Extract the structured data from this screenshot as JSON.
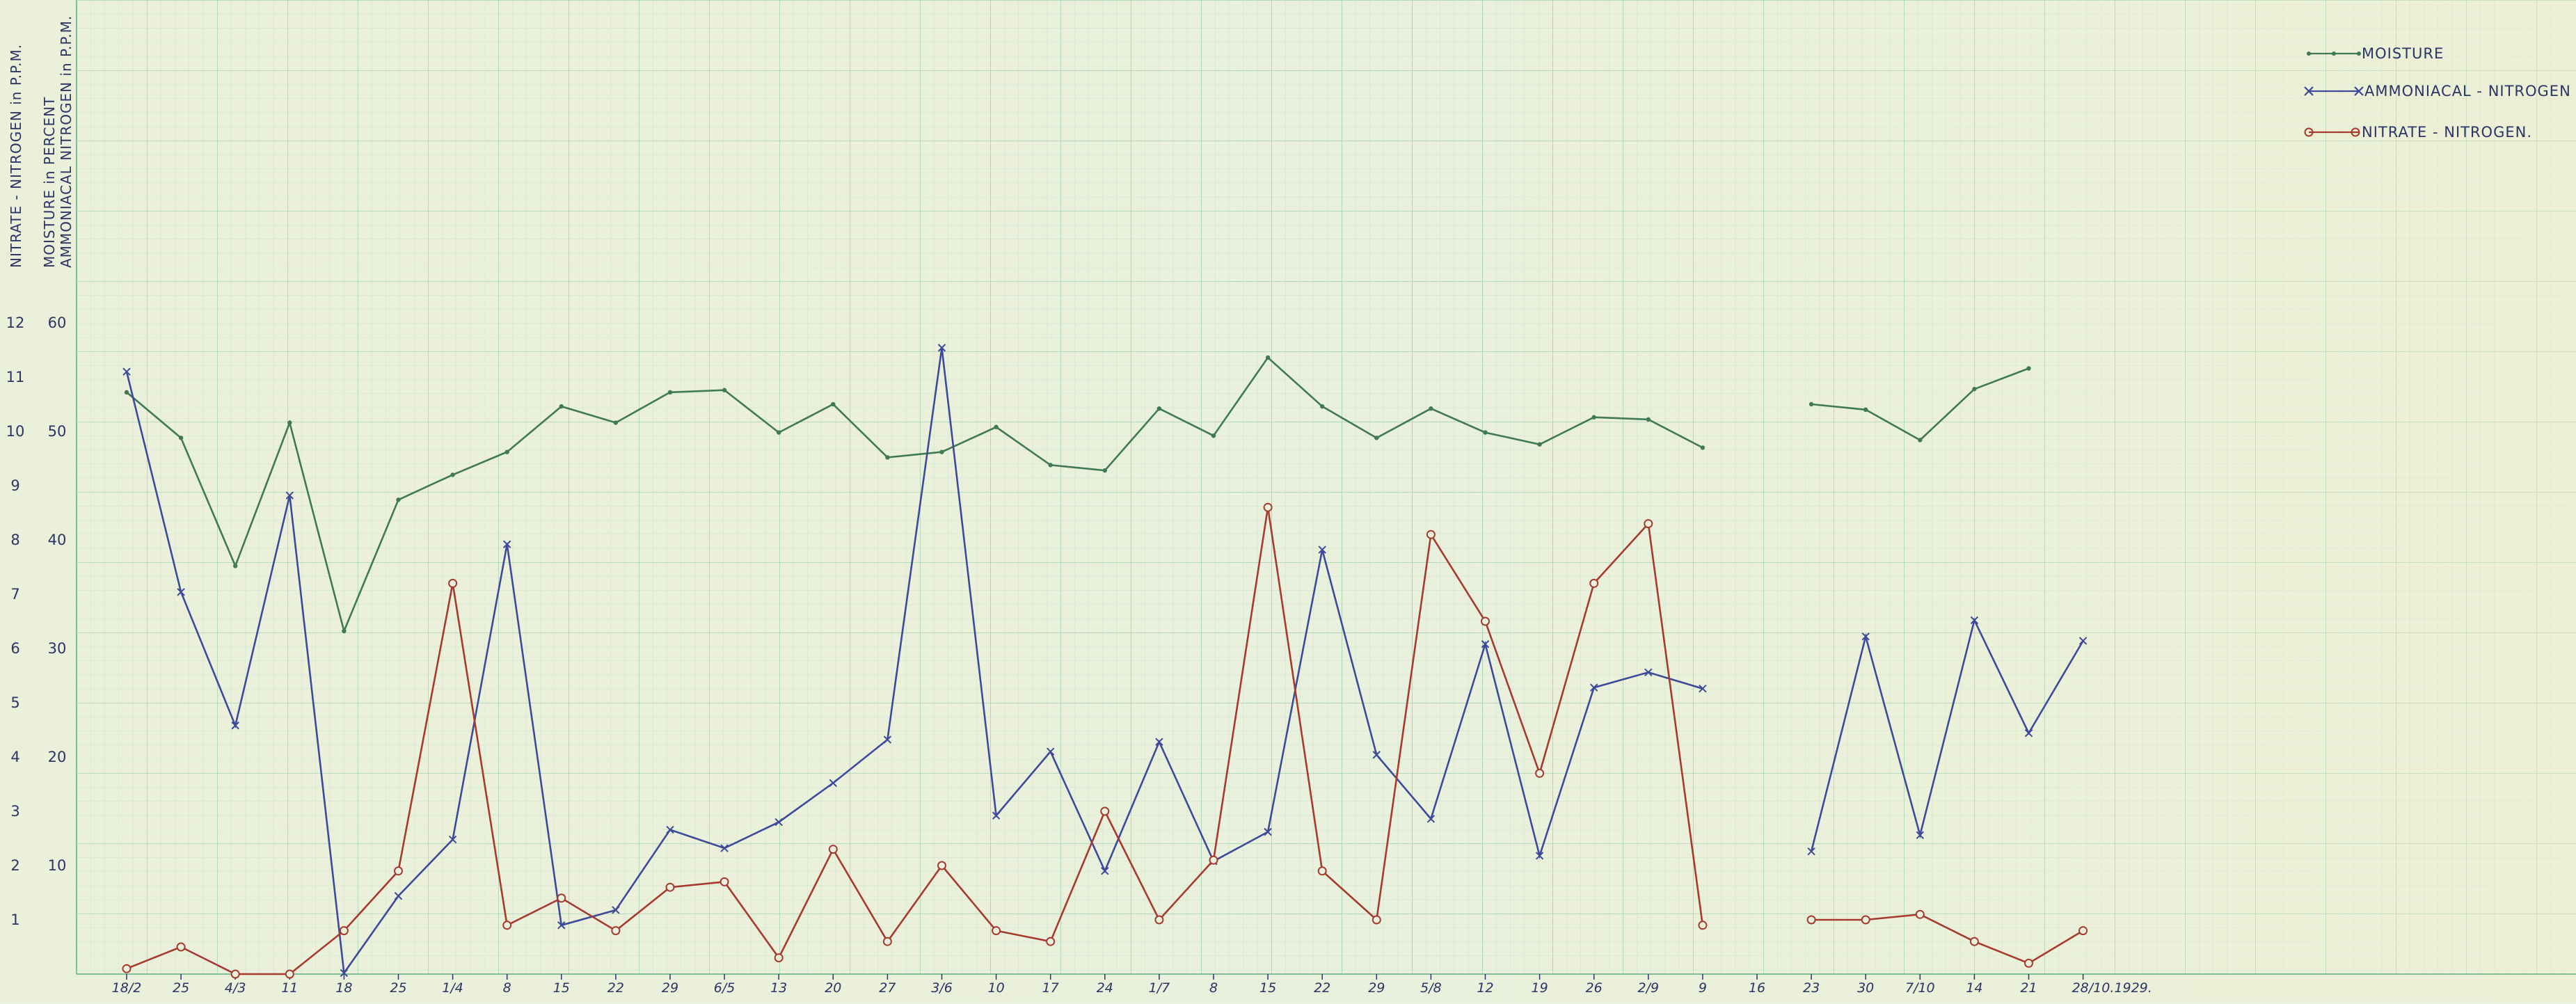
{
  "chart_data": {
    "type": "line",
    "title": "",
    "ylabel_left_outer": "NITRATE - NITROGEN in P.P.M.",
    "ylabel_left_inner_1": "MOISTURE in PERCENT",
    "ylabel_left_inner_2": "AMMONIACAL NITROGEN in P.P.M.",
    "nitrate_ticks": [
      1,
      2,
      3,
      4,
      5,
      6,
      7,
      8,
      9,
      10,
      11,
      12
    ],
    "moisture_ammonia_ticks": [
      10,
      20,
      30,
      40,
      50,
      60
    ],
    "x_ticks": [
      "18/2",
      "25",
      "4/3",
      "11",
      "18",
      "25",
      "1/4",
      "8",
      "15",
      "22",
      "29",
      "6/5",
      "13",
      "20",
      "27",
      "3/6",
      "10",
      "17",
      "24",
      "1/7",
      "8",
      "15",
      "22",
      "29",
      "5/8",
      "12",
      "19",
      "26",
      "2/9",
      "9",
      "16",
      "23",
      "30",
      "7/10",
      "14",
      "21",
      "28/10.1929."
    ],
    "legend_position": "top-right",
    "colors": {
      "moisture": "#3f7a55",
      "ammonia": "#3d4a9a",
      "nitrate": "#a63a2e",
      "grid_minor": "#bfe0cc",
      "grid_major": "#8fcaa8"
    },
    "series": [
      {
        "name": "MOISTURE",
        "marker": "dot",
        "points": [
          [
            0,
            53.6
          ],
          [
            1,
            49.4
          ],
          [
            2,
            37.6
          ],
          [
            3,
            50.8
          ],
          [
            4,
            31.6
          ],
          [
            5,
            43.7
          ],
          [
            6,
            46
          ],
          [
            7,
            48.1
          ],
          [
            8,
            52.3
          ],
          [
            9,
            50.8
          ],
          [
            10,
            53.6
          ],
          [
            11,
            53.8
          ],
          [
            12,
            49.9
          ],
          [
            13,
            52.5
          ],
          [
            14,
            47.6
          ],
          [
            15,
            48.1
          ],
          [
            16,
            50.4
          ],
          [
            17,
            46.9
          ],
          [
            18,
            46.4
          ],
          [
            19,
            52.1
          ],
          [
            20,
            49.6
          ],
          [
            21,
            56.8
          ],
          [
            22,
            52.3
          ],
          [
            23,
            49.4
          ],
          [
            24,
            52.1
          ],
          [
            25,
            49.9
          ],
          [
            26,
            48.8
          ],
          [
            27,
            51.3
          ],
          [
            28,
            51.1
          ],
          [
            29,
            48.5
          ],
          [
            31,
            52.5
          ],
          [
            32,
            52
          ],
          [
            33,
            49.2
          ],
          [
            34,
            53.9
          ],
          [
            35,
            55.8
          ]
        ]
      },
      {
        "name": "AMMONIACAL - NITROGEN",
        "marker": "x",
        "points": [
          [
            0,
            55.5
          ],
          [
            1,
            35.2
          ],
          [
            2,
            22.9
          ],
          [
            3,
            44.1
          ],
          [
            4,
            0.1
          ],
          [
            5,
            7.2
          ],
          [
            6,
            12.4
          ],
          [
            7,
            39.6
          ],
          [
            8,
            4.5
          ],
          [
            9,
            5.9
          ],
          [
            10,
            13.3
          ],
          [
            11,
            11.6
          ],
          [
            12,
            14
          ],
          [
            13,
            17.6
          ],
          [
            14,
            21.6
          ],
          [
            15,
            57.7
          ],
          [
            16,
            14.6
          ],
          [
            17,
            20.5
          ],
          [
            18,
            9.5
          ],
          [
            19,
            21.4
          ],
          [
            20,
            10.4
          ],
          [
            21,
            13.1
          ],
          [
            22,
            39.1
          ],
          [
            23,
            20.2
          ],
          [
            24,
            14.3
          ],
          [
            25,
            30.4
          ],
          [
            26,
            10.9
          ],
          [
            27,
            26.4
          ],
          [
            28,
            27.8
          ],
          [
            29,
            26.3
          ],
          [
            31,
            11.3
          ],
          [
            32,
            31.1
          ],
          [
            33,
            12.8
          ],
          [
            34,
            32.6
          ],
          [
            35,
            22.2
          ],
          [
            36,
            30.7
          ]
        ]
      },
      {
        "name": "NITRATE - NITROGEN.",
        "marker": "circle",
        "points": [
          [
            0,
            0.1
          ],
          [
            1,
            0.5
          ],
          [
            2,
            0
          ],
          [
            3,
            0
          ],
          [
            4,
            0.8
          ],
          [
            5,
            1.9
          ],
          [
            6,
            7.2
          ],
          [
            7,
            0.9
          ],
          [
            8,
            1.4
          ],
          [
            9,
            0.8
          ],
          [
            10,
            1.6
          ],
          [
            11,
            1.7
          ],
          [
            12,
            0.3
          ],
          [
            13,
            2.3
          ],
          [
            14,
            0.6
          ],
          [
            15,
            2
          ],
          [
            16,
            0.8
          ],
          [
            17,
            0.6
          ],
          [
            18,
            3
          ],
          [
            19,
            1
          ],
          [
            20,
            2.1
          ],
          [
            21,
            8.6
          ],
          [
            22,
            1.9
          ],
          [
            23,
            1
          ],
          [
            24,
            8.1
          ],
          [
            25,
            6.5
          ],
          [
            26,
            3.7
          ],
          [
            27,
            7.2
          ],
          [
            28,
            8.3
          ],
          [
            29,
            0.9
          ],
          [
            31,
            1
          ],
          [
            32,
            1
          ],
          [
            33,
            1.1
          ],
          [
            34,
            0.6
          ],
          [
            35,
            0.2
          ],
          [
            36,
            0.8
          ]
        ]
      }
    ]
  }
}
